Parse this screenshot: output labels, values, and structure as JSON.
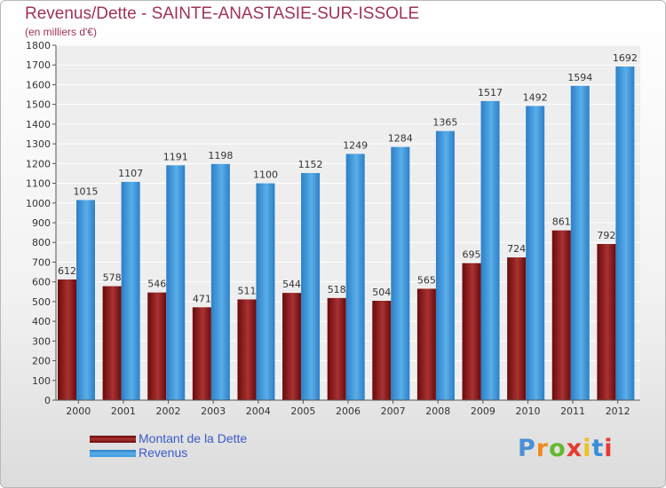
{
  "header": {
    "title": "Revenus/Dette - SAINTE-ANASTASIE-SUR-ISSOLE",
    "subtitle": "(en milliers d'€)"
  },
  "legend": [
    {
      "label": "Montant de la Dette",
      "color": "#6b0a0a"
    },
    {
      "label": "Revenus",
      "color": "#3d9be0"
    }
  ],
  "logo": {
    "letters": [
      "P",
      "r",
      "o",
      "x",
      "i",
      "t",
      "i"
    ],
    "colors": [
      "#4a8fd4",
      "#f08a20",
      "#62b82e",
      "#e8392f",
      "#f0c020",
      "#3a8fd8",
      "#e8392f"
    ]
  },
  "chart_data": {
    "type": "bar",
    "title": "Revenus/Dette - SAINTE-ANASTASIE-SUR-ISSOLE",
    "subtitle": "(en milliers d'€)",
    "categories": [
      "2000",
      "2001",
      "2002",
      "2003",
      "2004",
      "2005",
      "2006",
      "2007",
      "2008",
      "2009",
      "2010",
      "2011",
      "2012"
    ],
    "series": [
      {
        "name": "Montant de la Dette",
        "color": "#6b0a0a",
        "values": [
          612,
          578,
          546,
          471,
          511,
          544,
          518,
          504,
          565,
          695,
          724,
          861,
          792
        ]
      },
      {
        "name": "Revenus",
        "color": "#3d9be0",
        "values": [
          1015,
          1107,
          1191,
          1198,
          1100,
          1152,
          1249,
          1284,
          1365,
          1517,
          1492,
          1594,
          1692
        ]
      }
    ],
    "ylim": [
      0,
      1800
    ],
    "ytick_step": 100,
    "grid": true,
    "legend_position": "bottom-left"
  }
}
